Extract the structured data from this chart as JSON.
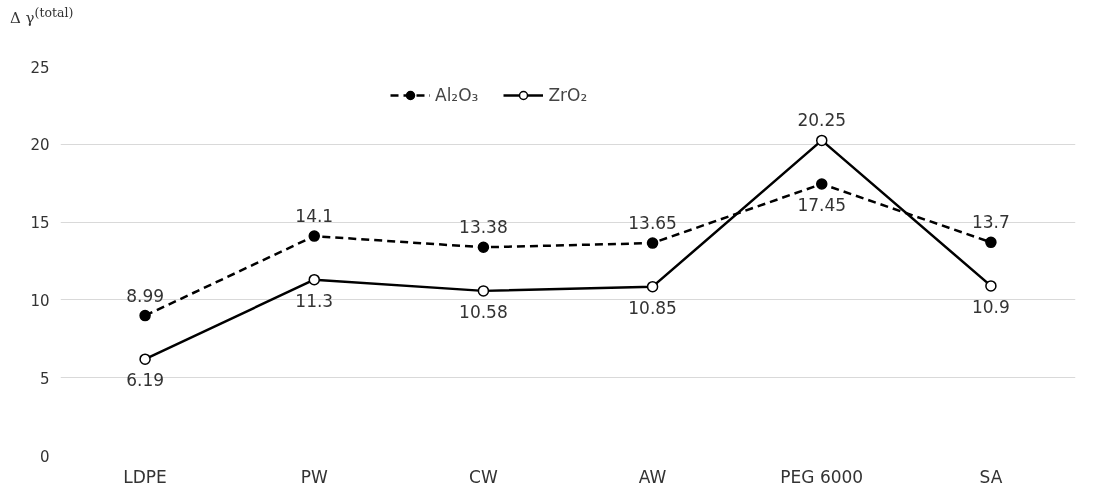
{
  "chart_data": {
    "type": "line",
    "ylabel": "Δ γ$^{(total)}$",
    "categories": [
      "LDPE",
      "PW",
      "CW",
      "AW",
      "PEG 6000",
      "SA"
    ],
    "series": [
      {
        "name": "Al₂O₃",
        "color": "#000000",
        "line_style": "dashed",
        "marker": "circle",
        "values": [
          8.99,
          14.1,
          13.38,
          13.65,
          17.45,
          13.7
        ]
      },
      {
        "name": "ZrO₂",
        "color": "#000000",
        "line_style": "solid",
        "marker": "circle",
        "values": [
          6.19,
          11.3,
          10.58,
          10.85,
          20.25,
          10.9
        ]
      }
    ],
    "ylim": [
      0,
      25
    ],
    "yticks": [
      0,
      5,
      10,
      15,
      20,
      25
    ],
    "grid": "y",
    "legend": "top",
    "data_labels": true
  }
}
